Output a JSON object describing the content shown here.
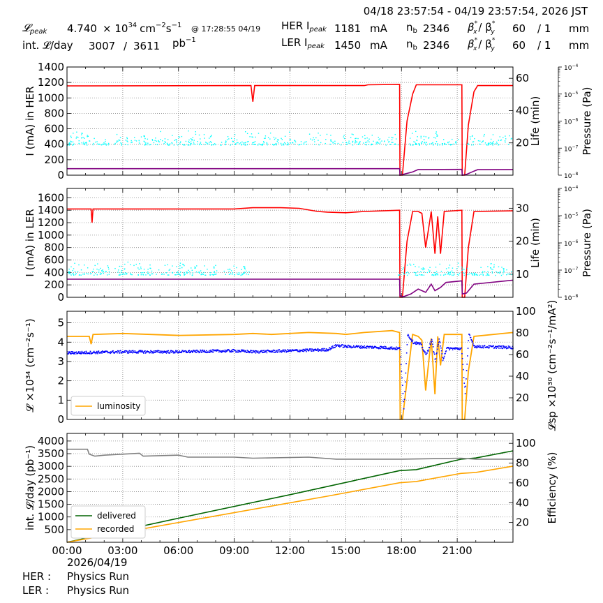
{
  "header": {
    "range": "04/18 23:57:54 - 04/19 23:57:54, 2026 JST",
    "lpeak_label": "𝓛",
    "lpeak_sub": "peak",
    "lpeak_value": "4.740",
    "lpeak_exp": "× 10",
    "lpeak_exp_sup": "34",
    "lpeak_unit": "cm",
    "lpeak_unit_sup1": "−2",
    "lpeak_unit_s": "s",
    "lpeak_unit_sup2": "−1",
    "lpeak_time": "@ 17:28:55 04/19",
    "int_label": "int. 𝓛/day",
    "int_value": "3007",
    "int_sep": "/",
    "int_total": "3611",
    "int_unit": "pb",
    "int_unit_sup": "−1",
    "her_label": "HER I",
    "her_sub": "peak",
    "her_value": "1181",
    "her_unit": "mA",
    "her_nb_label": "n",
    "her_nb_sub": "b",
    "her_nb_value": "2346",
    "her_beta": "β",
    "her_beta_x": "x",
    "her_beta_slash": "/ β",
    "her_beta_y": "y",
    "her_bx_val": "60",
    "her_by_val": "/ 1",
    "her_beta_unit": "mm",
    "ler_label": "LER I",
    "ler_sub": "peak",
    "ler_value": "1450",
    "ler_unit": "mA",
    "ler_nb_label": "n",
    "ler_nb_sub": "b",
    "ler_nb_value": "2346",
    "ler_beta": "β",
    "ler_beta_x": "x",
    "ler_beta_slash": "/ β",
    "ler_beta_y": "y",
    "ler_bx_val": "60",
    "ler_by_val": "/ 1",
    "ler_beta_unit": "mm",
    "star": "*"
  },
  "footer": {
    "date": "2026/04/19",
    "her_label": "HER :",
    "her_status": "Physics Run",
    "ler_label": "LER :",
    "ler_status": "Physics Run"
  },
  "colors": {
    "current": "#ff0000",
    "life": "#800080",
    "pressure": "#00ffff",
    "luminosity": "#ffa500",
    "specific": "#0000ff",
    "delivered": "#006400",
    "recorded": "#ffa500",
    "efficiency": "#808080"
  },
  "chart_data": [
    {
      "type": "line",
      "ylabel": "I (mA) in HER",
      "ylim": [
        0,
        1400
      ],
      "yticks": [
        0,
        200,
        400,
        600,
        800,
        1000,
        1200,
        1400
      ],
      "y2label": "Life (min)",
      "y2lim": [
        0,
        67
      ],
      "y2ticks": [
        20,
        40,
        60
      ],
      "y3label": "Pressure (Pa)",
      "y3ticks": [
        "10",
        "10",
        "10",
        "10",
        "10"
      ],
      "y3exps": [
        "−4",
        "−5",
        "−6",
        "−7",
        "−8"
      ],
      "xlim": [
        0,
        24
      ],
      "grid": true,
      "series": [
        {
          "points": [
            [
              0,
              1155
            ],
            [
              9.9,
              1160
            ],
            [
              10.0,
              950
            ],
            [
              10.1,
              1160
            ],
            [
              16.0,
              1160
            ],
            [
              16.2,
              1170
            ],
            [
              17.9,
              1175
            ],
            [
              17.92,
              0
            ],
            [
              18.05,
              0
            ],
            [
              18.3,
              700
            ],
            [
              18.6,
              1050
            ],
            [
              18.8,
              1170
            ],
            [
              21.25,
              1170
            ],
            [
              21.27,
              0
            ],
            [
              21.4,
              0
            ],
            [
              21.6,
              650
            ],
            [
              21.9,
              1080
            ],
            [
              22.1,
              1160
            ],
            [
              24,
              1160
            ]
          ]
        },
        {
          "points": [
            [
              0,
              4
            ],
            [
              17.9,
              4
            ],
            [
              17.92,
              0
            ],
            [
              18.1,
              0.5
            ],
            [
              18.6,
              2
            ],
            [
              18.9,
              3.5
            ],
            [
              21.25,
              3.6
            ],
            [
              21.27,
              0
            ],
            [
              21.5,
              0.5
            ],
            [
              21.9,
              2.5
            ],
            [
              22.1,
              3.4
            ],
            [
              24,
              3.5
            ]
          ]
        },
        {
          "band": [
            [
              0,
              18
            ],
            [
              17.9,
              18
            ],
            [
              18.2,
              18
            ],
            [
              21.2,
              18
            ],
            [
              21.5,
              18
            ],
            [
              24,
              18
            ]
          ],
          "band_lo": 15,
          "band_hi": 28
        }
      ]
    },
    {
      "type": "line",
      "ylabel": "I (mA) in LER",
      "ylim": [
        0,
        1750
      ],
      "yticks": [
        0,
        200,
        400,
        600,
        800,
        1000,
        1200,
        1400,
        1600
      ],
      "y2label": "Life (min)",
      "y2lim": [
        3,
        36
      ],
      "y2ticks": [
        10,
        20,
        30
      ],
      "y3label": "Pressure (Pa)",
      "y3ticks": [
        "10",
        "10",
        "10",
        "10",
        "10"
      ],
      "y3exps": [
        "−4",
        "−5",
        "−6",
        "−7",
        "−8"
      ],
      "xlim": [
        0,
        24
      ],
      "grid": true,
      "series": [
        {
          "points": [
            [
              0,
              1420
            ],
            [
              1.3,
              1420
            ],
            [
              1.35,
              1200
            ],
            [
              1.4,
              1420
            ],
            [
              9,
              1420
            ],
            [
              10,
              1440
            ],
            [
              11.5,
              1440
            ],
            [
              12.5,
              1430
            ],
            [
              13.5,
              1380
            ],
            [
              14,
              1370
            ],
            [
              15,
              1360
            ],
            [
              16,
              1380
            ],
            [
              17,
              1390
            ],
            [
              17.9,
              1400
            ],
            [
              17.92,
              0
            ],
            [
              18.05,
              0
            ],
            [
              18.3,
              900
            ],
            [
              18.6,
              1380
            ],
            [
              18.9,
              1380
            ],
            [
              19.1,
              1350
            ],
            [
              19.3,
              800
            ],
            [
              19.6,
              1380
            ],
            [
              19.8,
              700
            ],
            [
              19.95,
              1300
            ],
            [
              20.1,
              700
            ],
            [
              20.3,
              1380
            ],
            [
              21.25,
              1400
            ],
            [
              21.27,
              0
            ],
            [
              21.4,
              0
            ],
            [
              21.6,
              800
            ],
            [
              21.9,
              1380
            ],
            [
              24,
              1390
            ]
          ]
        },
        {
          "points": [
            [
              0,
              8.5
            ],
            [
              17.9,
              8.5
            ],
            [
              17.92,
              3.5
            ],
            [
              18.1,
              3.2
            ],
            [
              18.5,
              4
            ],
            [
              18.9,
              5.5
            ],
            [
              19.3,
              4.5
            ],
            [
              19.6,
              7
            ],
            [
              19.8,
              5
            ],
            [
              20.1,
              6
            ],
            [
              20.4,
              7.5
            ],
            [
              21.25,
              8
            ],
            [
              21.27,
              4
            ],
            [
              21.5,
              4.3
            ],
            [
              21.9,
              7
            ],
            [
              24,
              8.2
            ]
          ]
        },
        {
          "band": [
            [
              0,
              9
            ],
            [
              6,
              11
            ],
            [
              9.5,
              10
            ],
            [
              24,
              10
            ]
          ],
          "band_lo": 8,
          "band_hi": 14
        }
      ]
    },
    {
      "type": "line",
      "ylabel": "𝓛 ×10³⁴ (cm⁻²s⁻¹)",
      "ylim": [
        0,
        5.6
      ],
      "yticks": [
        0,
        1,
        2,
        3,
        4,
        5
      ],
      "y2label": "𝓛sp ×10³⁰ (cm⁻²s⁻¹/mA²)",
      "y2lim": [
        0,
        100
      ],
      "y2ticks": [
        20,
        40,
        60,
        80,
        100
      ],
      "xlim": [
        0,
        24
      ],
      "grid": true,
      "legend": "bottom-left",
      "series": [
        {
          "name": "luminosity",
          "points": [
            [
              0,
              4.3
            ],
            [
              1.2,
              4.3
            ],
            [
              1.3,
              3.9
            ],
            [
              1.4,
              4.4
            ],
            [
              3,
              4.45
            ],
            [
              6,
              4.35
            ],
            [
              9,
              4.4
            ],
            [
              10,
              4.45
            ],
            [
              11,
              4.4
            ],
            [
              13,
              4.5
            ],
            [
              14.5,
              4.45
            ],
            [
              15,
              4.4
            ],
            [
              16,
              4.5
            ],
            [
              17.5,
              4.6
            ],
            [
              17.9,
              4.5
            ],
            [
              17.93,
              0
            ],
            [
              18.05,
              0
            ],
            [
              18.3,
              2
            ],
            [
              18.6,
              4.4
            ],
            [
              18.9,
              4.3
            ],
            [
              19.1,
              4.1
            ],
            [
              19.3,
              1.5
            ],
            [
              19.6,
              4.2
            ],
            [
              19.8,
              1.3
            ],
            [
              19.95,
              4.3
            ],
            [
              20.1,
              2.8
            ],
            [
              20.3,
              4.4
            ],
            [
              21.25,
              4.4
            ],
            [
              21.27,
              0
            ],
            [
              21.4,
              0
            ],
            [
              21.6,
              2.5
            ],
            [
              21.9,
              4.3
            ],
            [
              24,
              4.5
            ]
          ]
        },
        {
          "points": [
            [
              0,
              62
            ],
            [
              3,
              63
            ],
            [
              6,
              63
            ],
            [
              9,
              64
            ],
            [
              10,
              63
            ],
            [
              12,
              64
            ],
            [
              14,
              65
            ],
            [
              14.5,
              69
            ],
            [
              15,
              68
            ],
            [
              17,
              67
            ],
            [
              17.9,
              66
            ],
            [
              18.1,
              10
            ],
            [
              18.3,
              79
            ],
            [
              18.6,
              72
            ],
            [
              19,
              70
            ],
            [
              19.3,
              60
            ],
            [
              19.6,
              74
            ],
            [
              19.8,
              55
            ],
            [
              20,
              75
            ],
            [
              20.2,
              56
            ],
            [
              20.4,
              66
            ],
            [
              21.2,
              66
            ],
            [
              21.4,
              25
            ],
            [
              21.6,
              79
            ],
            [
              21.9,
              68
            ],
            [
              24,
              67
            ]
          ]
        }
      ]
    },
    {
      "type": "line",
      "ylabel": "int. 𝓛/day (pb⁻¹)",
      "ylim": [
        0,
        4300
      ],
      "yticks": [
        500,
        1000,
        1500,
        2000,
        2500,
        3000,
        3500,
        4000
      ],
      "y2label": "Efficiency (%)",
      "y2lim": [
        0,
        110
      ],
      "y2ticks": [
        20,
        40,
        60,
        80,
        100
      ],
      "xlim": [
        0,
        24
      ],
      "xticks": [
        "00:00",
        "03:00",
        "06:00",
        "09:00",
        "12:00",
        "15:00",
        "18:00",
        "21:00"
      ],
      "grid": true,
      "legend": "bottom-left",
      "series": [
        {
          "name": "delivered",
          "points": [
            [
              0,
              0
            ],
            [
              6,
              950
            ],
            [
              12,
              1880
            ],
            [
              17.9,
              2830
            ],
            [
              18.8,
              2870
            ],
            [
              21.2,
              3280
            ],
            [
              22,
              3330
            ],
            [
              24,
              3611
            ]
          ]
        },
        {
          "name": "recorded",
          "points": [
            [
              0,
              0
            ],
            [
              6,
              780
            ],
            [
              12,
              1560
            ],
            [
              14,
              1820
            ],
            [
              17.9,
              2350
            ],
            [
              18.8,
              2400
            ],
            [
              21.2,
              2720
            ],
            [
              22,
              2760
            ],
            [
              24,
              3007
            ]
          ]
        },
        {
          "points": [
            [
              0,
              94
            ],
            [
              1.1,
              94
            ],
            [
              1.2,
              89
            ],
            [
              1.5,
              87
            ],
            [
              2,
              88
            ],
            [
              3.9,
              90
            ],
            [
              4.1,
              87
            ],
            [
              6,
              88
            ],
            [
              6.5,
              86
            ],
            [
              9,
              86
            ],
            [
              10,
              85
            ],
            [
              13,
              86
            ],
            [
              14.5,
              84
            ],
            [
              18,
              84
            ],
            [
              21.2,
              85
            ],
            [
              22,
              84
            ],
            [
              24,
              84
            ]
          ]
        }
      ]
    }
  ]
}
